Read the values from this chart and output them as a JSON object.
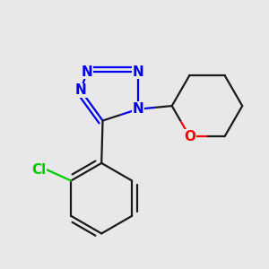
{
  "background_color": "#e8e8e8",
  "bond_color": "#1a1a1a",
  "nitrogen_color": "#0000ee",
  "oxygen_color": "#ff0000",
  "chlorine_color": "#00cc00",
  "line_width": 1.6,
  "font_size_atom": 11,
  "fig_size": [
    3.0,
    3.0
  ],
  "dpi": 100,
  "xlim": [
    -2.8,
    3.2
  ],
  "ylim": [
    -3.2,
    2.8
  ]
}
